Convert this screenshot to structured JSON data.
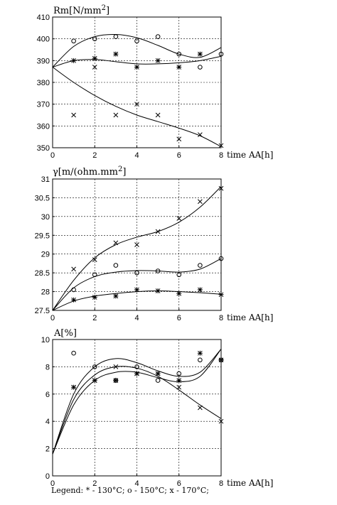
{
  "chart_data": [
    {
      "type": "scatter",
      "title": "Rm[N/mm2]",
      "xlabel": "time AA[h]",
      "ylabel": "Rm[N/mm2]",
      "xlim": [
        0,
        8
      ],
      "ylim": [
        350,
        410
      ],
      "xticks": [
        0,
        2,
        4,
        6,
        8
      ],
      "yticks": [
        350,
        360,
        370,
        380,
        390,
        400,
        410
      ],
      "ytick_labels": [
        "350",
        "360",
        "370",
        "380",
        "390",
        "400",
        "410"
      ],
      "grid": "dashed",
      "series": [
        {
          "marker": "*",
          "points": [
            [
              1,
              390
            ],
            [
              2,
              391
            ],
            [
              3,
              393
            ],
            [
              4,
              387
            ],
            [
              5,
              390
            ],
            [
              6,
              387
            ],
            [
              7,
              393
            ]
          ],
          "fit": [
            [
              0,
              387
            ],
            [
              1,
              390
            ],
            [
              2,
              390.5
            ],
            [
              3,
              389.5
            ],
            [
              4,
              388.5
            ],
            [
              5,
              388.5
            ],
            [
              6,
              389
            ],
            [
              7,
              390
            ],
            [
              8,
              392
            ]
          ]
        },
        {
          "marker": "o",
          "points": [
            [
              1,
              399
            ],
            [
              2,
              400
            ],
            [
              3,
              401
            ],
            [
              4,
              399
            ],
            [
              5,
              401
            ],
            [
              6,
              393
            ],
            [
              7,
              387
            ],
            [
              8,
              393
            ]
          ],
          "fit": [
            [
              0,
              387
            ],
            [
              1,
              396.5
            ],
            [
              2,
              401
            ],
            [
              3,
              402
            ],
            [
              4,
              400.5
            ],
            [
              5,
              397
            ],
            [
              6,
              393
            ],
            [
              7,
              391.5
            ],
            [
              8,
              396
            ]
          ]
        },
        {
          "marker": "x",
          "points": [
            [
              1,
              365
            ],
            [
              2,
              387
            ],
            [
              3,
              365
            ],
            [
              4,
              370
            ],
            [
              5,
              365
            ],
            [
              6,
              354
            ],
            [
              7,
              356
            ],
            [
              8,
              351
            ]
          ],
          "fit": [
            [
              0,
              387
            ],
            [
              1,
              380
            ],
            [
              2,
              374
            ],
            [
              3,
              369
            ],
            [
              4,
              365
            ],
            [
              5,
              362
            ],
            [
              6,
              359
            ],
            [
              7,
              355.5
            ],
            [
              8,
              350.5
            ]
          ]
        }
      ]
    },
    {
      "type": "scatter",
      "title": "γ[m/(ohm.mm2]",
      "xlabel": "time AA[h]",
      "ylabel": "γ[m/(ohm.mm2]",
      "xlim": [
        0,
        8
      ],
      "ylim": [
        27.5,
        31
      ],
      "xticks": [
        0,
        2,
        4,
        6,
        8
      ],
      "yticks": [
        27.5,
        28,
        28.5,
        29,
        29.5,
        30,
        30.5,
        31
      ],
      "ytick_labels": [
        "27.5",
        "28",
        "28.5",
        "29",
        "29.5",
        "30",
        "30.5",
        "31"
      ],
      "grid": "dashed",
      "series": [
        {
          "marker": "*",
          "points": [
            [
              1,
              27.78
            ],
            [
              2,
              27.85
            ],
            [
              3,
              27.88
            ],
            [
              4,
              28.05
            ],
            [
              5,
              28.02
            ],
            [
              6,
              27.95
            ],
            [
              7,
              28.05
            ],
            [
              8,
              27.92
            ]
          ],
          "fit": [
            [
              0,
              27.5
            ],
            [
              1,
              27.75
            ],
            [
              2,
              27.88
            ],
            [
              3,
              27.95
            ],
            [
              4,
              28.0
            ],
            [
              5,
              28.02
            ],
            [
              6,
              28.0
            ],
            [
              7,
              27.97
            ],
            [
              8,
              27.93
            ]
          ]
        },
        {
          "marker": "o",
          "points": [
            [
              1,
              28.05
            ],
            [
              2,
              28.45
            ],
            [
              3,
              28.7
            ],
            [
              4,
              28.5
            ],
            [
              5,
              28.55
            ],
            [
              6,
              28.45
            ],
            [
              7,
              28.7
            ],
            [
              8,
              28.88
            ]
          ],
          "fit": [
            [
              0,
              27.5
            ],
            [
              1,
              28.1
            ],
            [
              2,
              28.4
            ],
            [
              3,
              28.52
            ],
            [
              4,
              28.56
            ],
            [
              5,
              28.55
            ],
            [
              6,
              28.52
            ],
            [
              7,
              28.6
            ],
            [
              8,
              28.88
            ]
          ]
        },
        {
          "marker": "x",
          "points": [
            [
              1,
              28.6
            ],
            [
              2,
              28.85
            ],
            [
              3,
              29.3
            ],
            [
              4,
              29.25
            ],
            [
              5,
              29.6
            ],
            [
              6,
              29.95
            ],
            [
              7,
              30.4
            ],
            [
              8,
              30.75
            ]
          ],
          "fit": [
            [
              0,
              27.5
            ],
            [
              1,
              28.3
            ],
            [
              2,
              28.9
            ],
            [
              3,
              29.25
            ],
            [
              4,
              29.45
            ],
            [
              5,
              29.6
            ],
            [
              6,
              29.85
            ],
            [
              7,
              30.25
            ],
            [
              8,
              30.8
            ]
          ]
        }
      ]
    },
    {
      "type": "scatter",
      "title": "A[%]",
      "xlabel": "time AA[h]",
      "ylabel": "A[%]",
      "xlim": [
        0,
        8
      ],
      "ylim": [
        0,
        10
      ],
      "xticks": [
        0,
        2,
        4,
        6,
        8
      ],
      "yticks": [
        0,
        2,
        4,
        6,
        8,
        10
      ],
      "ytick_labels": [
        "0",
        "2",
        "4",
        "6",
        "8",
        "10"
      ],
      "grid": "dashed",
      "series": [
        {
          "marker": "*",
          "points": [
            [
              1,
              6.5
            ],
            [
              2,
              7.0
            ],
            [
              3,
              7.0
            ],
            [
              4,
              7.5
            ],
            [
              5,
              7.5
            ],
            [
              6,
              7.0
            ],
            [
              7,
              9.0
            ],
            [
              8,
              8.5
            ]
          ],
          "fit": [
            [
              0,
              1.6
            ],
            [
              1,
              5.2
            ],
            [
              2,
              7.0
            ],
            [
              3,
              7.6
            ],
            [
              4,
              7.6
            ],
            [
              5,
              7.2
            ],
            [
              6,
              6.9
            ],
            [
              7,
              7.3
            ],
            [
              8,
              9.3
            ]
          ]
        },
        {
          "marker": "o",
          "points": [
            [
              1,
              9.0
            ],
            [
              2,
              8.0
            ],
            [
              3,
              7.0
            ],
            [
              4,
              8.0
            ],
            [
              5,
              7.0
            ],
            [
              6,
              7.5
            ],
            [
              7,
              8.5
            ],
            [
              8,
              8.5
            ]
          ],
          "fit": [
            [
              0,
              1.6
            ],
            [
              1,
              6.0
            ],
            [
              2,
              8.0
            ],
            [
              3,
              8.6
            ],
            [
              4,
              8.3
            ],
            [
              5,
              7.7
            ],
            [
              6,
              7.3
            ],
            [
              7,
              7.6
            ],
            [
              8,
              9.3
            ]
          ]
        },
        {
          "marker": "x",
          "points": [
            [
              1,
              6.5
            ],
            [
              2,
              7.0
            ],
            [
              3,
              8.0
            ],
            [
              4,
              7.5
            ],
            [
              5,
              7.5
            ],
            [
              6,
              6.5
            ],
            [
              7,
              5.0
            ],
            [
              8,
              4.0
            ]
          ],
          "fit": [
            [
              0,
              1.6
            ],
            [
              1,
              5.6
            ],
            [
              2,
              7.4
            ],
            [
              3,
              8.0
            ],
            [
              4,
              7.9
            ],
            [
              5,
              7.3
            ],
            [
              6,
              6.3
            ],
            [
              7,
              5.2
            ],
            [
              8,
              4.2
            ]
          ]
        }
      ]
    }
  ],
  "legend": {
    "text": "Legend:  * - 130°C;   o - 150°C;   x - 170°C;"
  }
}
